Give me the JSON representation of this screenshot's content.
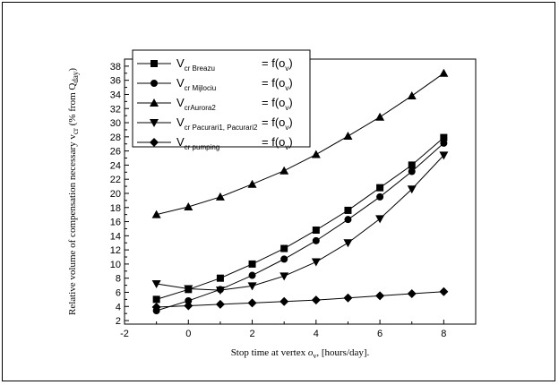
{
  "chart_data": {
    "type": "line",
    "xlabel_prefix": "Stop time at vertex ",
    "xlabel_var": "o",
    "xlabel_var_sub": "v",
    "xlabel_suffix": ", [hours/day].",
    "ylabel_main": "Relative volume of compensation necessary v",
    "ylabel_sub": "cr",
    "ylabel_paren": " (% from Q",
    "ylabel_paren_sub": "day",
    "ylabel_close": ")",
    "xlim": [
      -2,
      9
    ],
    "ylim": [
      1.5,
      39
    ],
    "xticks": [
      -2,
      0,
      2,
      4,
      6,
      8
    ],
    "yticks": [
      2,
      4,
      6,
      8,
      10,
      12,
      14,
      16,
      18,
      20,
      22,
      24,
      26,
      28,
      30,
      32,
      34,
      36,
      38
    ],
    "x": [
      -1,
      0,
      1,
      2,
      3,
      4,
      5,
      6,
      7,
      8
    ],
    "grid": false,
    "legend_position": "top-left",
    "series": [
      {
        "name": "V",
        "name_sub": "cr Breazu",
        "func": "= f(o",
        "func_sub": "v",
        "func_close": ")",
        "marker": "square",
        "values": [
          5.0,
          6.4,
          8.0,
          10.0,
          12.2,
          14.8,
          17.6,
          20.8,
          24.0,
          27.9
        ]
      },
      {
        "name": "V",
        "name_sub": "cr Mijlociu",
        "func": "= f(o",
        "func_sub": "v",
        "func_close": ")",
        "marker": "circle",
        "values": [
          3.4,
          4.8,
          6.4,
          8.4,
          10.7,
          13.3,
          16.3,
          19.5,
          23.1,
          27.1
        ]
      },
      {
        "name": "V",
        "name_sub": "crAurora2",
        "func": "= f(o",
        "func_sub": "v",
        "func_close": ")",
        "marker": "triangle-up",
        "values": [
          17.0,
          18.1,
          19.5,
          21.3,
          23.2,
          25.5,
          28.1,
          30.8,
          33.8,
          37.0
        ]
      },
      {
        "name": "V",
        "name_sub": "cr Pacurari1, Pacurari2",
        "func": "= f(o",
        "func_sub": "v",
        "func_close": ")",
        "marker": "triangle-down",
        "values": [
          7.2,
          6.5,
          6.3,
          6.9,
          8.3,
          10.3,
          13.0,
          16.4,
          20.6,
          25.4
        ]
      },
      {
        "name": "V",
        "name_sub": "cr pumping",
        "func": "= f(o",
        "func_sub": "v",
        "func_close": ")",
        "marker": "diamond",
        "values": [
          3.9,
          4.1,
          4.3,
          4.5,
          4.7,
          4.9,
          5.2,
          5.5,
          5.8,
          6.1
        ]
      }
    ]
  }
}
